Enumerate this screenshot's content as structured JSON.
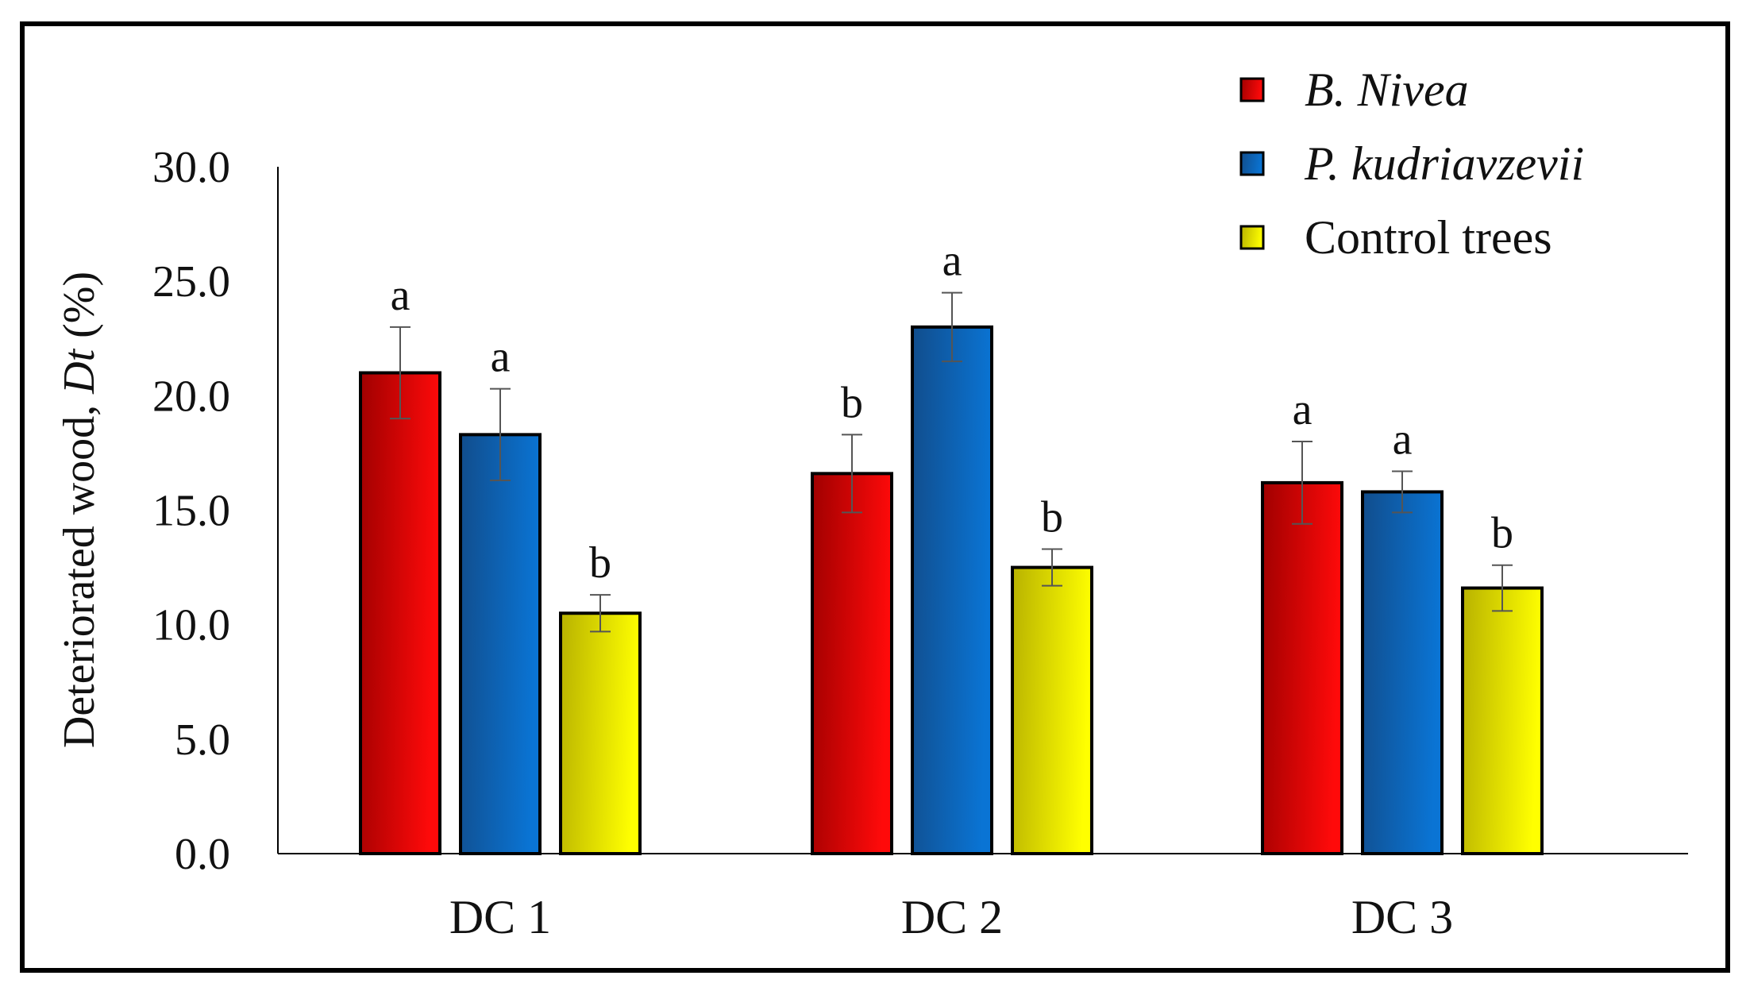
{
  "chart_data": {
    "type": "bar",
    "title": "",
    "xlabel": "",
    "ylabel": {
      "prefix": "Deteriorated wood, ",
      "symbol": "Dt",
      "suffix": " (%)"
    },
    "ylim": [
      0,
      30
    ],
    "yticks": [
      0,
      5,
      10,
      15,
      20,
      25,
      30
    ],
    "ytick_labels": [
      "0.0",
      "5.0",
      "10.0",
      "15.0",
      "20.0",
      "25.0",
      "30.0"
    ],
    "grid": false,
    "legend_position": "top-right",
    "categories": [
      "DC 1",
      "DC 2",
      "DC 3"
    ],
    "series": [
      {
        "name": "B. Nivea",
        "italic": true,
        "color_dark": "#a00000",
        "color_light": "#ff0a0a",
        "values": [
          21.0,
          16.6,
          16.2
        ],
        "errors": [
          2.0,
          1.7,
          1.8
        ],
        "significance": [
          "a",
          "b",
          "a"
        ]
      },
      {
        "name": "P. kudriavzevii",
        "italic": true,
        "color_dark": "#114d8c",
        "color_light": "#0a74d4",
        "values": [
          18.3,
          23.0,
          15.8
        ],
        "errors": [
          2.0,
          1.5,
          0.9
        ],
        "significance": [
          "a",
          "a",
          "a"
        ]
      },
      {
        "name": "Control trees",
        "italic": false,
        "color_dark": "#b8b200",
        "color_light": "#ffff00",
        "values": [
          10.5,
          12.5,
          11.6
        ],
        "errors": [
          0.8,
          0.8,
          1.0
        ],
        "significance": [
          "b",
          "b",
          "b"
        ]
      }
    ]
  }
}
